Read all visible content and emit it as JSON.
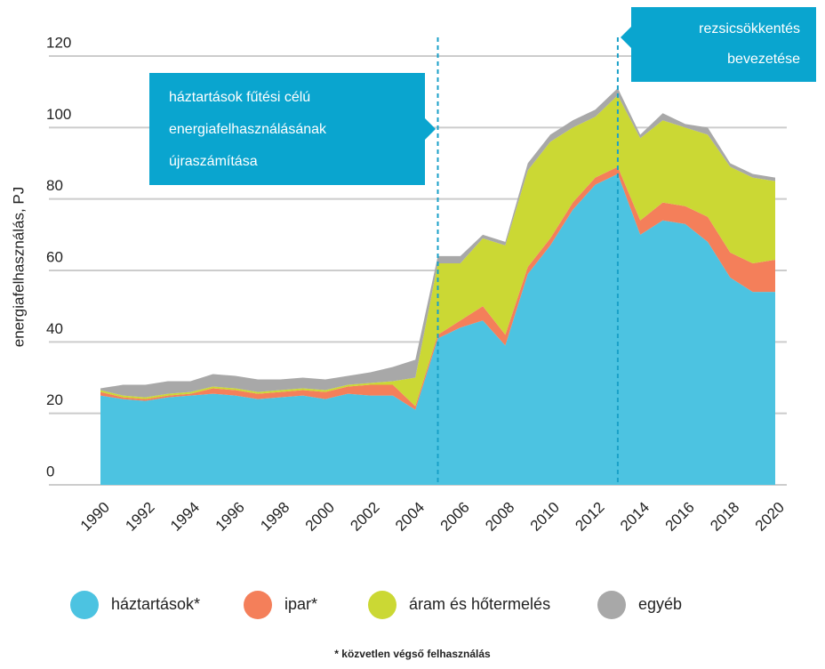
{
  "chart_data": {
    "type": "stacked_area",
    "y_label": "energiafelhasználás, PJ",
    "x": [
      1990,
      1991,
      1992,
      1993,
      1994,
      1995,
      1996,
      1997,
      1998,
      1999,
      2000,
      2001,
      2002,
      2003,
      2004,
      2005,
      2006,
      2007,
      2008,
      2009,
      2010,
      2011,
      2012,
      2013,
      2014,
      2015,
      2016,
      2017,
      2018,
      2019,
      2020
    ],
    "xlim": [
      1990,
      2020
    ],
    "xticks": [
      1990,
      1992,
      1994,
      1996,
      1998,
      2000,
      2002,
      2004,
      2006,
      2008,
      2010,
      2012,
      2014,
      2016,
      2018,
      2020
    ],
    "ylim": [
      0,
      120
    ],
    "yticks": [
      0,
      20,
      40,
      60,
      80,
      100,
      120
    ],
    "grid": true,
    "series": [
      {
        "name": "háztartások*",
        "color": "#4cc3e1",
        "values": [
          25,
          24,
          23.5,
          24.5,
          25,
          25.5,
          25,
          24,
          24.5,
          25,
          24,
          25.5,
          25,
          25,
          21,
          41,
          44,
          46,
          39,
          59,
          67,
          77,
          84,
          87,
          70,
          74,
          73,
          68,
          58,
          54,
          54
        ]
      },
      {
        "name": "ipar*",
        "color": "#f47f5a",
        "values": [
          1,
          0.5,
          0.5,
          0.5,
          0.5,
          1.5,
          1.5,
          1.5,
          1.5,
          1.5,
          2,
          2,
          3,
          3,
          1,
          1,
          2,
          4,
          3,
          2,
          2,
          2,
          2,
          2,
          4,
          5,
          5,
          7,
          7,
          8,
          9
        ]
      },
      {
        "name": "áram és hőtermelés",
        "color": "#cbd834",
        "values": [
          0.5,
          0.5,
          0.5,
          0.5,
          0.5,
          0.5,
          0.5,
          0.5,
          0.5,
          0.5,
          0.5,
          0.5,
          0.5,
          1,
          8,
          20,
          16,
          19,
          25,
          27,
          27,
          21,
          17,
          20,
          23,
          23,
          22,
          23,
          24,
          24,
          22
        ]
      },
      {
        "name": "egyéb",
        "color": "#a8a8a8",
        "values": [
          0.5,
          3,
          3.5,
          3.5,
          3,
          3.5,
          3.5,
          3.5,
          3,
          3,
          3,
          2.5,
          3,
          4,
          5,
          2,
          2,
          1,
          1,
          2,
          2,
          2,
          2,
          2,
          1,
          2,
          1,
          2,
          1,
          1,
          1
        ]
      }
    ],
    "annotations": [
      {
        "x": 2005,
        "lines": [
          "háztartások fűtési célú",
          "energiafelhasználásának",
          "újraszámítása"
        ]
      },
      {
        "x": 2013,
        "lines": [
          "rezsicsökkentés",
          "bevezetése"
        ]
      }
    ],
    "footnote": "* közvetlen végső felhasználás"
  }
}
